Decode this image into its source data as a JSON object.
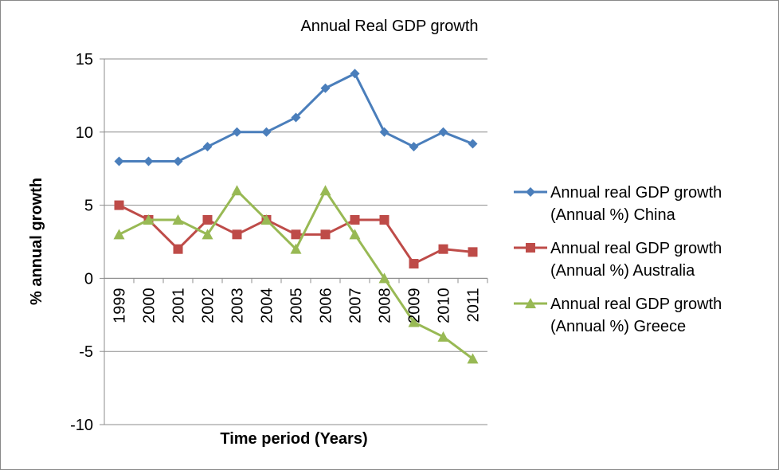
{
  "chart_data": {
    "type": "line",
    "title": "Annual Real GDP growth",
    "xlabel": "Time period (Years)",
    "ylabel": "% annual growth",
    "categories": [
      "1999",
      "2000",
      "2001",
      "2002",
      "2003",
      "2004",
      "2005",
      "2006",
      "2007",
      "2008",
      "2009",
      "2010",
      "2011"
    ],
    "ylim": [
      -10,
      15
    ],
    "yticks": [
      15,
      10,
      5,
      0,
      -5,
      -10
    ],
    "grid": true,
    "legend_position": "right",
    "series": [
      {
        "name_line1": "Annual real GDP growth",
        "name_line2": "(Annual %) China",
        "color": "#4A7EBB",
        "marker": "diamond",
        "values": [
          8,
          8,
          8,
          9,
          10,
          10,
          11,
          13,
          14,
          10,
          9,
          10,
          9.2
        ]
      },
      {
        "name_line1": "Annual real GDP growth",
        "name_line2": "(Annual %) Australia",
        "color": "#BE4B48",
        "marker": "square",
        "values": [
          5,
          4,
          2,
          4,
          3,
          4,
          3,
          3,
          4,
          4,
          1,
          2,
          1.8
        ]
      },
      {
        "name_line1": "Annual real GDP growth",
        "name_line2": "(Annual %) Greece",
        "color": "#98B954",
        "marker": "triangle",
        "values": [
          3,
          4,
          4,
          3,
          6,
          4,
          2,
          6,
          3,
          0,
          -3,
          -4,
          -5.5
        ]
      }
    ]
  }
}
